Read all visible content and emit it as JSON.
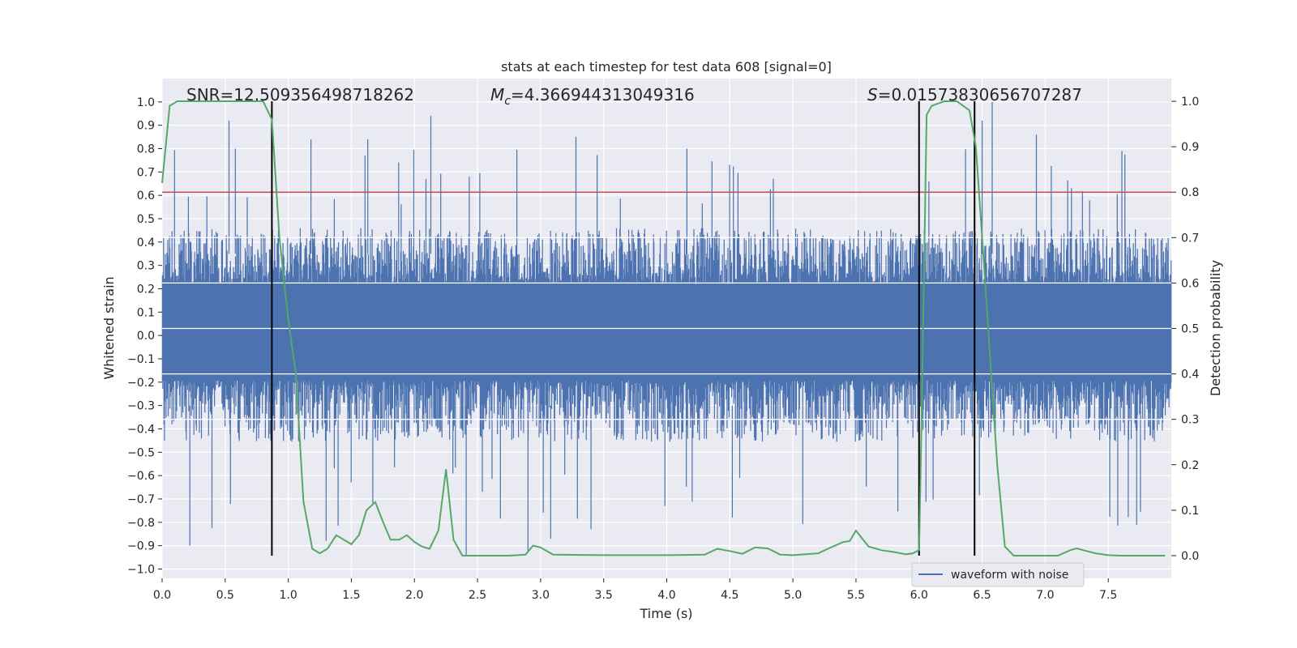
{
  "chart_data": {
    "type": "line",
    "title": "stats at each timestep for test data 608 [signal=0]",
    "xlabel": "Time (s)",
    "ylabel": "Whitened strain",
    "ylabel_right": "Detection probability",
    "xlim": [
      0.0,
      8.0
    ],
    "ylim": [
      -1.04,
      1.1
    ],
    "ylim_right": [
      -0.05,
      1.05
    ],
    "x_ticks": [
      "0.0",
      "0.5",
      "1.0",
      "1.5",
      "2.0",
      "2.5",
      "3.0",
      "3.5",
      "4.0",
      "4.5",
      "5.0",
      "5.5",
      "6.0",
      "6.5",
      "7.0",
      "7.5"
    ],
    "x_tick_values": [
      0.0,
      0.5,
      1.0,
      1.5,
      2.0,
      2.5,
      3.0,
      3.5,
      4.0,
      4.5,
      5.0,
      5.5,
      6.0,
      6.5,
      7.0,
      7.5
    ],
    "y_ticks": [
      "1.0",
      "0.9",
      "0.8",
      "0.7",
      "0.6",
      "0.5",
      "0.4",
      "0.3",
      "0.2",
      "0.1",
      "0.0",
      "-0.1",
      "-0.2",
      "-0.3",
      "-0.4",
      "-0.5",
      "-0.6",
      "-0.7",
      "-0.8",
      "-0.9",
      "-1.0"
    ],
    "y_tick_values": [
      1.0,
      0.9,
      0.8,
      0.7,
      0.6,
      0.5,
      0.4,
      0.3,
      0.2,
      0.1,
      0.0,
      -0.1,
      -0.2,
      -0.3,
      -0.4,
      -0.5,
      -0.6,
      -0.7,
      -0.8,
      -0.9,
      -1.0
    ],
    "y_ticks_right": [
      "1.0",
      "0.9",
      "0.8",
      "0.7",
      "0.6",
      "0.5",
      "0.4",
      "0.3",
      "0.2",
      "0.1",
      "0.0"
    ],
    "y_tick_values_right": [
      1.0,
      0.9,
      0.8,
      0.7,
      0.6,
      0.5,
      0.4,
      0.3,
      0.2,
      0.1,
      0.0
    ],
    "grid": true,
    "legend_placement": "lower right",
    "annotations": {
      "snr": "SNR=12.509356498718262",
      "mc_symbol": "M",
      "mc_sub": "c",
      "mc_value": "=4.366944313049316",
      "s_symbol": "S",
      "s_value": "=0.01573830656707287"
    },
    "series": [
      {
        "name": "waveform with noise",
        "color": "#4c72b0",
        "kind": "dense-noise",
        "typical_band": [
          -0.35,
          0.4
        ],
        "max_value": 1.0,
        "min_value": -0.94,
        "spikes": [
          {
            "x": 0.53,
            "y": 0.92
          },
          {
            "x": 0.58,
            "y": 0.8
          },
          {
            "x": 1.18,
            "y": 0.84
          },
          {
            "x": 1.63,
            "y": 0.84
          },
          {
            "x": 2.13,
            "y": 0.94
          },
          {
            "x": 3.28,
            "y": 0.85
          },
          {
            "x": 4.16,
            "y": 0.8
          },
          {
            "x": 6.5,
            "y": 0.92
          },
          {
            "x": 6.58,
            "y": 1.0
          },
          {
            "x": 6.93,
            "y": 0.86
          },
          {
            "x": 0.22,
            "y": -0.9
          },
          {
            "x": 2.41,
            "y": -0.94
          },
          {
            "x": 2.9,
            "y": -0.93
          },
          {
            "x": 3.08,
            "y": -0.87
          },
          {
            "x": 3.4,
            "y": -0.83
          },
          {
            "x": 4.52,
            "y": -0.78
          },
          {
            "x": 1.3,
            "y": -0.88
          },
          {
            "x": 1.67,
            "y": -0.72
          }
        ]
      },
      {
        "name": "",
        "color": "#55a868",
        "axis": "right",
        "x": [
          0.0,
          0.06,
          0.12,
          0.2,
          0.3,
          0.4,
          0.5,
          0.6,
          0.7,
          0.8,
          0.87,
          0.93,
          1.0,
          1.06,
          1.12,
          1.19,
          1.25,
          1.31,
          1.38,
          1.44,
          1.5,
          1.56,
          1.62,
          1.69,
          1.75,
          1.81,
          1.88,
          1.94,
          2.0,
          2.06,
          2.12,
          2.19,
          2.25,
          2.31,
          2.38,
          2.5,
          2.6,
          2.75,
          2.88,
          2.94,
          3.0,
          3.1,
          3.5,
          4.0,
          4.3,
          4.4,
          4.5,
          4.6,
          4.7,
          4.8,
          4.9,
          5.0,
          5.1,
          5.2,
          5.3,
          5.4,
          5.45,
          5.5,
          5.6,
          5.7,
          5.8,
          5.9,
          5.95,
          6.0,
          6.02,
          6.06,
          6.1,
          6.2,
          6.3,
          6.4,
          6.45,
          6.5,
          6.56,
          6.62,
          6.68,
          6.75,
          6.8,
          6.9,
          7.0,
          7.1,
          7.2,
          7.25,
          7.3,
          7.4,
          7.5,
          7.6,
          7.75,
          7.95
        ],
        "y": [
          0.82,
          0.99,
          1.0,
          1.0,
          1.0,
          1.0,
          1.0,
          1.0,
          1.0,
          1.0,
          0.96,
          0.7,
          0.52,
          0.4,
          0.12,
          0.015,
          0.005,
          0.015,
          0.045,
          0.035,
          0.025,
          0.045,
          0.1,
          0.118,
          0.075,
          0.035,
          0.035,
          0.045,
          0.03,
          0.02,
          0.015,
          0.055,
          0.19,
          0.035,
          0.0,
          0.0,
          0.0,
          0.0,
          0.002,
          0.022,
          0.018,
          0.002,
          0.001,
          0.001,
          0.002,
          0.015,
          0.01,
          0.004,
          0.018,
          0.016,
          0.002,
          0.001,
          0.003,
          0.005,
          0.018,
          0.03,
          0.032,
          0.055,
          0.02,
          0.012,
          0.008,
          0.003,
          0.005,
          0.012,
          0.3,
          0.97,
          0.99,
          1.0,
          1.0,
          0.98,
          0.9,
          0.7,
          0.45,
          0.2,
          0.02,
          0.0,
          0.0,
          0.0,
          0.0,
          0.0,
          0.012,
          0.016,
          0.012,
          0.005,
          0.001,
          0.0,
          0.0,
          0.0
        ]
      }
    ],
    "threshold_line": {
      "y": 0.8,
      "color": "#c44e52"
    },
    "vertical_lines": [
      0.87,
      6.0,
      6.44
    ]
  }
}
